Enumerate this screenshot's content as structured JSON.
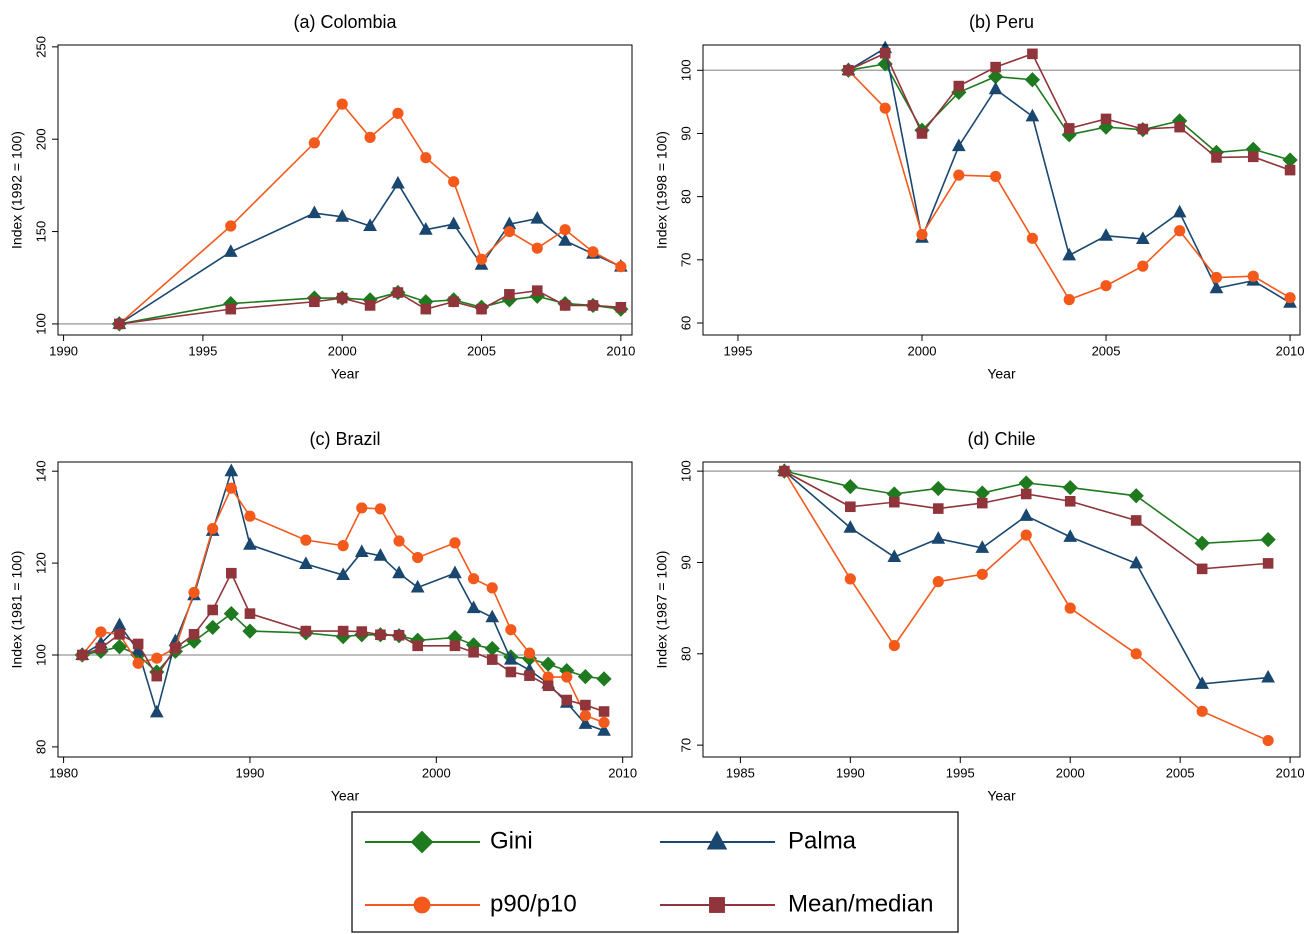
{
  "chart_data": [
    {
      "type": "line",
      "title": "(a) Colombia",
      "x_label": "Year",
      "y_label": "Index (1992 = 100)",
      "x": [
        1992,
        1996,
        1999,
        2000,
        2001,
        2002,
        2003,
        2004,
        2005,
        2006,
        2007,
        2008,
        2009,
        2010
      ],
      "xlim": [
        1989.8,
        2010.4
      ],
      "xticks": [
        1990,
        1995,
        2000,
        2005,
        2010
      ],
      "ylim": [
        94,
        251
      ],
      "yticks": [
        100,
        150,
        200,
        250
      ],
      "refline": 100,
      "series": [
        {
          "name": "Gini",
          "color": "#1f7a1f",
          "marker": "diamond",
          "values": [
            100,
            111,
            114,
            114,
            113,
            117,
            112,
            113,
            109,
            113,
            115,
            111,
            110,
            108
          ]
        },
        {
          "name": "Palma",
          "color": "#1a476f",
          "marker": "triangle",
          "values": [
            100,
            139,
            160,
            158,
            153,
            176,
            151,
            154,
            132,
            154,
            157,
            145,
            138,
            131
          ]
        },
        {
          "name": "p90/p10",
          "color": "#f4591c",
          "marker": "circle",
          "values": [
            100,
            153,
            198,
            219,
            201,
            214,
            190,
            177,
            135,
            150,
            141,
            151,
            139,
            131
          ]
        },
        {
          "name": "Mean/median",
          "color": "#90353b",
          "marker": "square",
          "values": [
            100,
            108,
            112,
            114,
            110,
            117,
            108,
            112,
            108,
            116,
            118,
            110,
            110,
            109
          ]
        }
      ]
    },
    {
      "type": "line",
      "title": "(b) Peru",
      "x_label": "Year",
      "y_label": "Index (1998 = 100)",
      "x": [
        1998,
        1999,
        2000,
        2001,
        2002,
        2003,
        2004,
        2005,
        2006,
        2007,
        2008,
        2009,
        2010
      ],
      "xlim": [
        1994.05,
        2010.27
      ],
      "xticks": [
        1995,
        2000,
        2005,
        2010
      ],
      "ylim": [
        58.1,
        104
      ],
      "yticks": [
        60,
        70,
        80,
        90,
        100
      ],
      "refline": 100,
      "series": [
        {
          "name": "Gini",
          "color": "#1f7a1f",
          "marker": "diamond",
          "values": [
            100,
            101,
            90.5,
            96.5,
            99,
            98.5,
            89.8,
            91,
            90.6,
            92,
            87,
            87.5,
            85.8
          ]
        },
        {
          "name": "Palma",
          "color": "#1a476f",
          "marker": "triangle",
          "values": [
            100,
            103.5,
            73.5,
            88,
            97,
            92.7,
            70.7,
            73.8,
            73.3,
            77.5,
            65.5,
            66.7,
            63.2
          ]
        },
        {
          "name": "p90/p10",
          "color": "#f4591c",
          "marker": "circle",
          "values": [
            100,
            94,
            74,
            83.4,
            83.2,
            73.4,
            63.7,
            65.9,
            69,
            74.6,
            67.2,
            67.4,
            64
          ]
        },
        {
          "name": "Mean/median",
          "color": "#90353b",
          "marker": "square",
          "values": [
            100,
            102.7,
            90,
            97.5,
            100.5,
            102.6,
            90.8,
            92.3,
            90.7,
            91,
            86.2,
            86.3,
            84.2
          ]
        }
      ]
    },
    {
      "type": "line",
      "title": "(c) Brazil",
      "x_label": "Year",
      "y_label": "Index (1981 = 100)",
      "x": [
        1981,
        1982,
        1983,
        1984,
        1985,
        1986,
        1987,
        1988,
        1989,
        1990,
        1993,
        1995,
        1996,
        1997,
        1998,
        1999,
        2001,
        2002,
        2003,
        2004,
        2005,
        2006,
        2007,
        2008,
        2009
      ],
      "xlim": [
        1979.7,
        2010.5
      ],
      "xticks": [
        1980,
        1990,
        2000,
        2010
      ],
      "ylim": [
        77.8,
        142
      ],
      "yticks": [
        80,
        100,
        120,
        140
      ],
      "refline": 100,
      "series": [
        {
          "name": "Gini",
          "color": "#1f7a1f",
          "marker": "diamond",
          "values": [
            100,
            100.8,
            101.8,
            100,
            96.3,
            100.8,
            103,
            106,
            109,
            105.2,
            104.8,
            104,
            104.4,
            104.4,
            104.2,
            103.2,
            103.8,
            102.2,
            101.4,
            99.6,
            99.2,
            98,
            96.6,
            95.3,
            94.8
          ]
        },
        {
          "name": "Palma",
          "color": "#1a476f",
          "marker": "triangle",
          "values": [
            100,
            102.5,
            106.5,
            101,
            87.5,
            103,
            113,
            127,
            140,
            124,
            119.8,
            117.4,
            122.4,
            121.6,
            117.8,
            114.7,
            117.8,
            110.2,
            108.2,
            99,
            96.7,
            93.8,
            89.6,
            85,
            83.5
          ]
        },
        {
          "name": "p90/p10",
          "color": "#f4591c",
          "marker": "circle",
          "values": [
            100,
            105,
            104.5,
            98.2,
            99.3,
            101.5,
            113.6,
            127.5,
            136.3,
            130.2,
            125,
            123.8,
            132,
            131.8,
            124.8,
            121.2,
            124.4,
            116.6,
            114.6,
            105.5,
            100.4,
            95.2,
            95.2,
            86.8,
            85.3
          ]
        },
        {
          "name": "Mean/median",
          "color": "#90353b",
          "marker": "square",
          "values": [
            100,
            101.5,
            104.5,
            102.4,
            95.4,
            101.5,
            104.5,
            109.8,
            117.8,
            109,
            105.2,
            105.2,
            105.1,
            104.4,
            104.3,
            102,
            102,
            100.6,
            99,
            96.3,
            95.5,
            93.3,
            90.2,
            89.1,
            87.7
          ]
        }
      ]
    },
    {
      "type": "line",
      "title": "(d) Chile",
      "x_label": "Year",
      "y_label": "Index (1987 = 100)",
      "x": [
        1987,
        1990,
        1992,
        1994,
        1996,
        1998,
        2000,
        2003,
        2006,
        2009
      ],
      "xlim": [
        1983.3,
        2010.45
      ],
      "xticks": [
        1985,
        1990,
        1995,
        2000,
        2005,
        2010
      ],
      "ylim": [
        68.7,
        101
      ],
      "yticks": [
        70,
        80,
        90,
        100
      ],
      "refline": 100,
      "series": [
        {
          "name": "Gini",
          "color": "#1f7a1f",
          "marker": "diamond",
          "values": [
            100,
            98.3,
            97.5,
            98.1,
            97.6,
            98.7,
            98.2,
            97.3,
            92.1,
            92.5
          ]
        },
        {
          "name": "Palma",
          "color": "#1a476f",
          "marker": "triangle",
          "values": [
            100,
            93.8,
            90.6,
            92.6,
            91.6,
            95.1,
            92.8,
            89.9,
            76.7,
            77.4
          ]
        },
        {
          "name": "p90/p10",
          "color": "#f4591c",
          "marker": "circle",
          "values": [
            100,
            88.2,
            80.9,
            87.9,
            88.7,
            93,
            85,
            80,
            73.7,
            70.5
          ]
        },
        {
          "name": "Mean/median",
          "color": "#90353b",
          "marker": "square",
          "values": [
            100,
            96.1,
            96.6,
            95.9,
            96.5,
            97.5,
            96.7,
            94.6,
            89.3,
            89.9
          ]
        }
      ]
    }
  ]
}
